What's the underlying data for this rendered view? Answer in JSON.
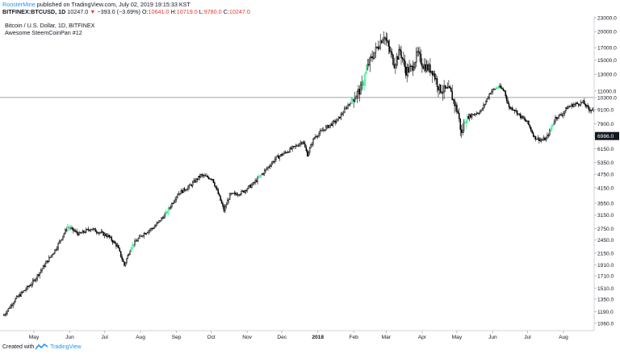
{
  "header": {
    "author": "RoosterMine",
    "published_text": "published on TradingView.com, July 02, 2019 19:15:33 KST",
    "symbol": "BITFINEX:BTCUSD, 1D",
    "last": "10247.0",
    "change": "−393.0 (−3.69%)",
    "open_label": "O:",
    "open": "10641.0",
    "high_label": "H:",
    "high": "10719.0",
    "low_label": "L:",
    "low": "9780.0",
    "close_label": "C:",
    "close": "10247.0"
  },
  "legend": {
    "title": "Bitcoin / U.S. Dollar, 1D, BITFINEX",
    "indicator": "Awesome SteemCoinPan #12"
  },
  "footer": {
    "created_with": "Created with",
    "brand": "TradingView"
  },
  "colors": {
    "grid": "#e6e6e6",
    "candle": "#000000",
    "highlight": "#00e676",
    "price_line": "#9aa0a6",
    "text": "#131722"
  },
  "chart_data": {
    "type": "candlestick",
    "title": "Bitcoin / U.S. Dollar, 1D, BITFINEX",
    "y_scale": "log",
    "ylim": [
      1000,
      23000
    ],
    "y_ticks": [
      23000.0,
      20000.0,
      17000.0,
      15000.0,
      13000.0,
      11000.0,
      10300.0,
      9100.0,
      7900.0,
      6986.0,
      6150.0,
      5350.0,
      4750.0,
      4150.0,
      3550.0,
      3150.0,
      2750.0,
      2450.0,
      2150.0,
      1910.0,
      1710.0,
      1510.0,
      1350.0,
      1190.0,
      1060.0
    ],
    "y_tick_labels": [
      "23000.0",
      "20000.0",
      "17000.0",
      "15000.0",
      "13000.0",
      "11000.0",
      "10300.0",
      "9100.0",
      "7900.0",
      "6986.0",
      "6150.0",
      "5350.0",
      "4750.0",
      "4150.0",
      "3550.0",
      "3150.0",
      "2750.0",
      "2450.0",
      "2150.0",
      "1910.0",
      "1710.0",
      "1510.0",
      "1350.0",
      "1190.0",
      "1060.0"
    ],
    "highlighted_tick": "6986.0",
    "price_line": 10300,
    "x_labels": [
      "May",
      "Jun",
      "Jul",
      "Aug",
      "Sep",
      "Oct",
      "Nov",
      "Dec",
      "2018",
      "Feb",
      "Mar",
      "Apr",
      "May",
      "Jun",
      "Jul",
      "Aug"
    ],
    "x_label_days": [
      26,
      57,
      87,
      118,
      149,
      179,
      210,
      240,
      271,
      302,
      330,
      361,
      391,
      422,
      452,
      483
    ],
    "bar_count": 510,
    "anchors": [
      [
        0,
        1150
      ],
      [
        10,
        1350
      ],
      [
        25,
        1600
      ],
      [
        45,
        2250
      ],
      [
        55,
        2800
      ],
      [
        65,
        2600
      ],
      [
        75,
        2750
      ],
      [
        90,
        2550
      ],
      [
        98,
        2300
      ],
      [
        104,
        1900
      ],
      [
        110,
        2300
      ],
      [
        120,
        2600
      ],
      [
        130,
        2800
      ],
      [
        140,
        3200
      ],
      [
        150,
        3900
      ],
      [
        160,
        4200
      ],
      [
        170,
        4700
      ],
      [
        180,
        4550
      ],
      [
        185,
        3900
      ],
      [
        190,
        3300
      ],
      [
        195,
        3850
      ],
      [
        205,
        3950
      ],
      [
        215,
        4300
      ],
      [
        225,
        4900
      ],
      [
        235,
        5600
      ],
      [
        245,
        6000
      ],
      [
        252,
        6300
      ],
      [
        258,
        6650
      ],
      [
        262,
        5800
      ],
      [
        268,
        6900
      ],
      [
        278,
        7600
      ],
      [
        288,
        8200
      ],
      [
        300,
        10000
      ],
      [
        308,
        11200
      ],
      [
        315,
        14500
      ],
      [
        322,
        17000
      ],
      [
        328,
        19400
      ],
      [
        332,
        17000
      ],
      [
        337,
        14500
      ],
      [
        342,
        16500
      ],
      [
        347,
        13500
      ],
      [
        352,
        13800
      ],
      [
        357,
        16000
      ],
      [
        362,
        14300
      ],
      [
        370,
        13500
      ],
      [
        376,
        11200
      ],
      [
        385,
        11000
      ],
      [
        392,
        8800
      ],
      [
        395,
        7100
      ],
      [
        398,
        8300
      ],
      [
        403,
        8600
      ],
      [
        412,
        9000
      ],
      [
        420,
        10900
      ],
      [
        427,
        11500
      ],
      [
        432,
        11000
      ],
      [
        436,
        9300
      ],
      [
        440,
        9200
      ],
      [
        446,
        8500
      ],
      [
        452,
        8000
      ],
      [
        458,
        6900
      ],
      [
        464,
        6700
      ],
      [
        468,
        6800
      ],
      [
        472,
        7500
      ],
      [
        476,
        8400
      ],
      [
        482,
        8700
      ],
      [
        486,
        9300
      ],
      [
        492,
        9600
      ],
      [
        500,
        9800
      ],
      [
        505,
        9100
      ],
      [
        510,
        9200
      ]
    ],
    "highlight_ranges": [
      [
        55,
        57
      ],
      [
        110,
        112
      ],
      [
        140,
        142
      ],
      [
        220,
        222
      ],
      [
        300,
        301
      ],
      [
        310,
        313
      ],
      [
        398,
        400
      ],
      [
        425,
        427
      ],
      [
        472,
        474
      ]
    ]
  }
}
